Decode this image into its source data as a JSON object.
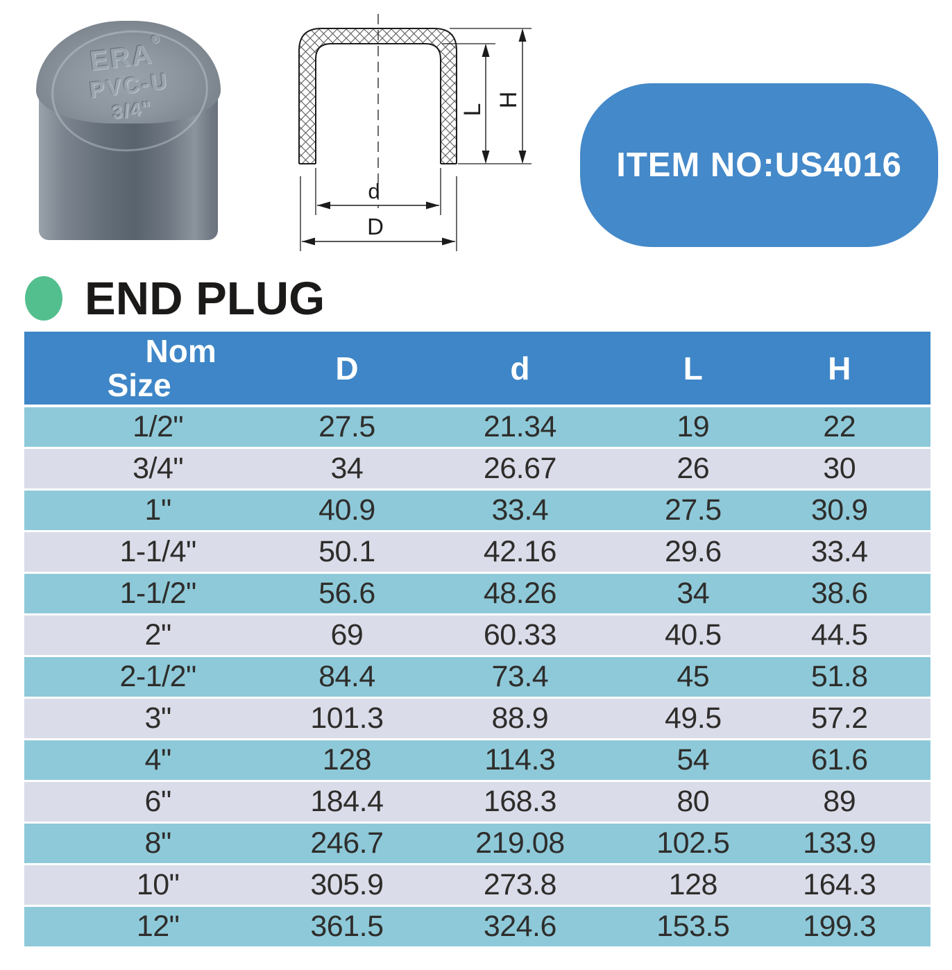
{
  "colors": {
    "accent_blue": "#3e86c7",
    "badge_blue": "#4489c9",
    "row_teal": "#8ec9d9",
    "row_lavender": "#dadce9",
    "bullet_green": "#53bf8e",
    "heading_text": "#1b1a19",
    "cell_text": "#2e2d2b"
  },
  "photo": {
    "brand": "ERA",
    "reg": "®",
    "material": "PVC-U",
    "size_marking": "3/4\""
  },
  "badge": {
    "label": "ITEM NO:US4016"
  },
  "diagram": {
    "labels": {
      "inner_diameter": "d",
      "outer_diameter": "D",
      "insert_depth": "L",
      "height": "H"
    }
  },
  "section": {
    "title": "END PLUG"
  },
  "table": {
    "header": {
      "nom": "Nom",
      "size": "Size",
      "D": "D",
      "d": "d",
      "L": "L",
      "H": "H"
    },
    "rows": [
      [
        "1/2\"",
        "27.5",
        "21.34",
        "19",
        "22"
      ],
      [
        "3/4\"",
        "34",
        "26.67",
        "26",
        "30"
      ],
      [
        "1\"",
        "40.9",
        "33.4",
        "27.5",
        "30.9"
      ],
      [
        "1-1/4\"",
        "50.1",
        "42.16",
        "29.6",
        "33.4"
      ],
      [
        "1-1/2\"",
        "56.6",
        "48.26",
        "34",
        "38.6"
      ],
      [
        "2\"",
        "69",
        "60.33",
        "40.5",
        "44.5"
      ],
      [
        "2-1/2\"",
        "84.4",
        "73.4",
        "45",
        "51.8"
      ],
      [
        "3\"",
        "101.3",
        "88.9",
        "49.5",
        "57.2"
      ],
      [
        "4\"",
        "128",
        "114.3",
        "54",
        "61.6"
      ],
      [
        "6\"",
        "184.4",
        "168.3",
        "80",
        "89"
      ],
      [
        "8\"",
        "246.7",
        "219.08",
        "102.5",
        "133.9"
      ],
      [
        "10\"",
        "305.9",
        "273.8",
        "128",
        "164.3"
      ],
      [
        "12\"",
        "361.5",
        "324.6",
        "153.5",
        "199.3"
      ]
    ]
  }
}
